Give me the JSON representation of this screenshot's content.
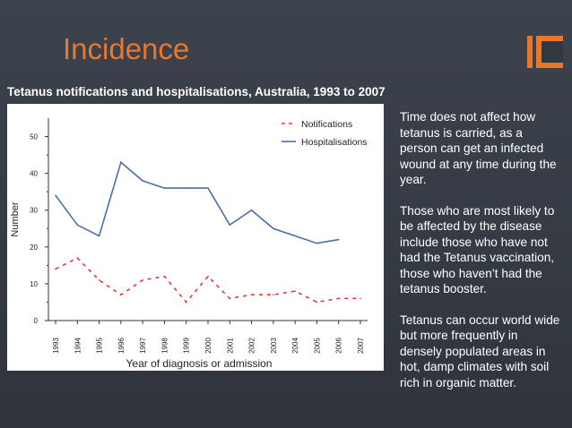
{
  "slide": {
    "title": "Incidence",
    "subtitle": "Tetanus notifications and hospitalisations, Australia, 1993 to 2007",
    "paragraphs": [
      "Time does not affect how tetanus is carried, as a person can get an infected wound at any time during the year.",
      "Those who are most likely to be affected by the disease include those who have not had the Tetanus vaccination, those who haven’t had the tetanus booster.",
      "Tetanus can occur world wide but more frequently in densely populated areas in hot, damp climates with soil rich in organic matter."
    ],
    "colors": {
      "accent": "#e8762d",
      "background": "#363b44",
      "text": "#ffffff"
    }
  },
  "chart_data": {
    "type": "line",
    "title": "",
    "xlabel": "Year of diagnosis or admission",
    "ylabel": "Number",
    "ylim": [
      0,
      55
    ],
    "yticks": [
      0,
      10,
      20,
      30,
      40,
      50
    ],
    "x": [
      "1993",
      "1994",
      "1995",
      "1996",
      "1997",
      "1998",
      "1999",
      "2000",
      "2001",
      "2002",
      "2003",
      "2004",
      "2005",
      "2006",
      "2007"
    ],
    "series": [
      {
        "name": "Notifications",
        "style": "dashed",
        "color": "#e53935",
        "values": [
          14,
          17,
          11,
          7,
          11,
          12,
          5,
          12,
          6,
          7,
          7,
          8,
          5,
          6,
          6
        ]
      },
      {
        "name": "Hospitalisations",
        "style": "solid",
        "color": "#4a6fa5",
        "values": [
          34,
          26,
          23,
          43,
          38,
          36,
          36,
          36,
          26,
          30,
          25,
          23,
          21,
          22,
          null
        ]
      }
    ],
    "legend": "top-right",
    "grid": false
  }
}
